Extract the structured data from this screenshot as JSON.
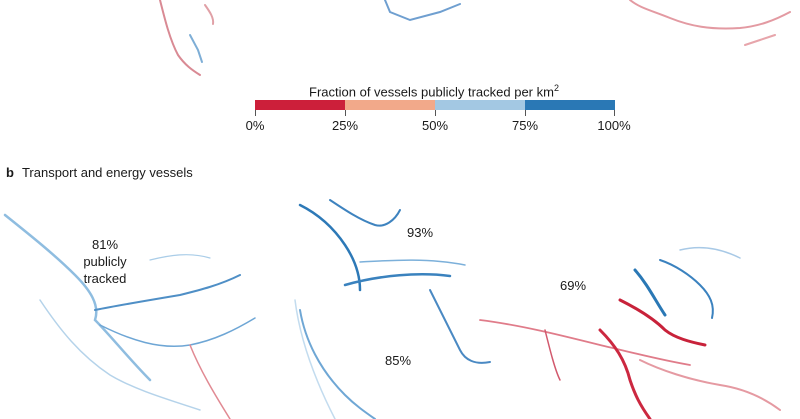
{
  "legend": {
    "title": "Fraction of vessels publicly tracked per km",
    "title_sup": "2",
    "colors": [
      "#cc1f3a",
      "#f2a98a",
      "#a3c8e3",
      "#2a78b5"
    ],
    "ticks": [
      "0%",
      "25%",
      "50%",
      "75%",
      "100%"
    ]
  },
  "panel": {
    "letter": "b",
    "title": "Transport and energy vessels"
  },
  "regions": {
    "americas": {
      "value": "81%",
      "line2": "publicly",
      "line3": "tracked"
    },
    "europe": {
      "value": "93%"
    },
    "africa": {
      "value": "85%"
    },
    "asia": {
      "value": "69%"
    }
  }
}
